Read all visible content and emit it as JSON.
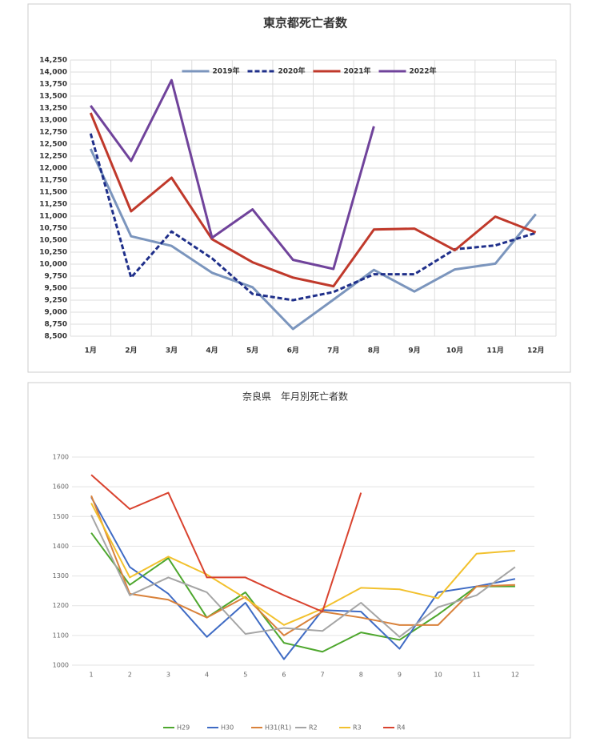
{
  "chart_data": [
    {
      "type": "line",
      "title": "東京都死亡者数",
      "categories": [
        "1月",
        "2月",
        "3月",
        "4月",
        "5月",
        "6月",
        "7月",
        "8月",
        "9月",
        "10月",
        "11月",
        "12月"
      ],
      "ylim": [
        8500,
        14250
      ],
      "yticks": [
        {
          "value": 8500,
          "label": "8,500"
        },
        {
          "value": 8750,
          "label": "8,750"
        },
        {
          "value": 9000,
          "label": "9,000"
        },
        {
          "value": 9250,
          "label": "9,250"
        },
        {
          "value": 9500,
          "label": "9,500"
        },
        {
          "value": 9750,
          "label": "9,750"
        },
        {
          "value": 10000,
          "label": "10,000"
        },
        {
          "value": 10250,
          "label": "10,250"
        },
        {
          "value": 10500,
          "label": "10,500"
        },
        {
          "value": 10750,
          "label": "10,750"
        },
        {
          "value": 11000,
          "label": "11,000"
        },
        {
          "value": 11250,
          "label": "11,250"
        },
        {
          "value": 11500,
          "label": "11,500"
        },
        {
          "value": 11750,
          "label": "11,750"
        },
        {
          "value": 12000,
          "label": "12,000"
        },
        {
          "value": 12250,
          "label": "12,250"
        },
        {
          "value": 12500,
          "label": "12,500"
        },
        {
          "value": 12750,
          "label": "12,750"
        },
        {
          "value": 13000,
          "label": "13,000"
        },
        {
          "value": 13250,
          "label": "13,250"
        },
        {
          "value": 13500,
          "label": "13,500"
        },
        {
          "value": 13750,
          "label": "13,750"
        },
        {
          "value": 14000,
          "label": "14,000"
        },
        {
          "value": 14250,
          "label": "14,250"
        }
      ],
      "grid": true,
      "x_grid": true,
      "legend": "top",
      "series": [
        {
          "name": "2019年",
          "color": "#7b95bd",
          "values": [
            12400,
            10580,
            10380,
            9820,
            9520,
            8650,
            9260,
            9880,
            9430,
            9890,
            10010,
            11040
          ]
        },
        {
          "name": "2020年",
          "color": "#1f2f8a",
          "dashed": true,
          "values": [
            12720,
            9720,
            10680,
            10120,
            9380,
            9250,
            9420,
            9790,
            9790,
            10310,
            10390,
            10650
          ]
        },
        {
          "name": "2021年",
          "color": "#c0392b",
          "values": [
            13150,
            11100,
            11800,
            10520,
            10040,
            9720,
            9540,
            10720,
            10740,
            10290,
            10990,
            10660
          ]
        },
        {
          "name": "2022年",
          "color": "#70439b",
          "values": [
            13300,
            12150,
            13830,
            10550,
            11140,
            10090,
            9900,
            12870,
            null,
            null,
            null,
            null
          ]
        }
      ]
    },
    {
      "type": "line",
      "title": "奈良県　年月別死亡者数",
      "categories": [
        "1",
        "2",
        "3",
        "4",
        "5",
        "6",
        "7",
        "8",
        "9",
        "10",
        "11",
        "12"
      ],
      "ylim": [
        1000,
        1700
      ],
      "yticks": [
        1000,
        1100,
        1200,
        1300,
        1400,
        1500,
        1600,
        1700
      ],
      "grid": true,
      "x_grid": false,
      "legend": "bottom",
      "series": [
        {
          "name": "H29",
          "color": "#4ea72e",
          "values": [
            1445,
            1270,
            1360,
            1160,
            1245,
            1075,
            1045,
            1110,
            1085,
            1170,
            1265,
            1265
          ]
        },
        {
          "name": "H30",
          "color": "#3f6bc4",
          "values": [
            1565,
            1330,
            1240,
            1095,
            1210,
            1020,
            1185,
            1180,
            1055,
            1245,
            1265,
            1290
          ]
        },
        {
          "name": "H31(R1)",
          "color": "#d9823b",
          "values": [
            1570,
            1240,
            1220,
            1160,
            1230,
            1100,
            1180,
            1160,
            1135,
            1135,
            1265,
            1270
          ]
        },
        {
          "name": "R2",
          "color": "#a5a5a5",
          "values": [
            1505,
            1235,
            1295,
            1245,
            1105,
            1125,
            1115,
            1210,
            1095,
            1195,
            1235,
            1330
          ]
        },
        {
          "name": "R3",
          "color": "#f2c12e",
          "values": [
            1545,
            1295,
            1365,
            1305,
            1225,
            1135,
            1190,
            1260,
            1255,
            1225,
            1375,
            1385
          ]
        },
        {
          "name": "R4",
          "color": "#d9432f",
          "values": [
            1640,
            1525,
            1580,
            1295,
            1295,
            1235,
            1180,
            1580,
            null,
            null,
            null,
            null
          ]
        }
      ]
    }
  ]
}
